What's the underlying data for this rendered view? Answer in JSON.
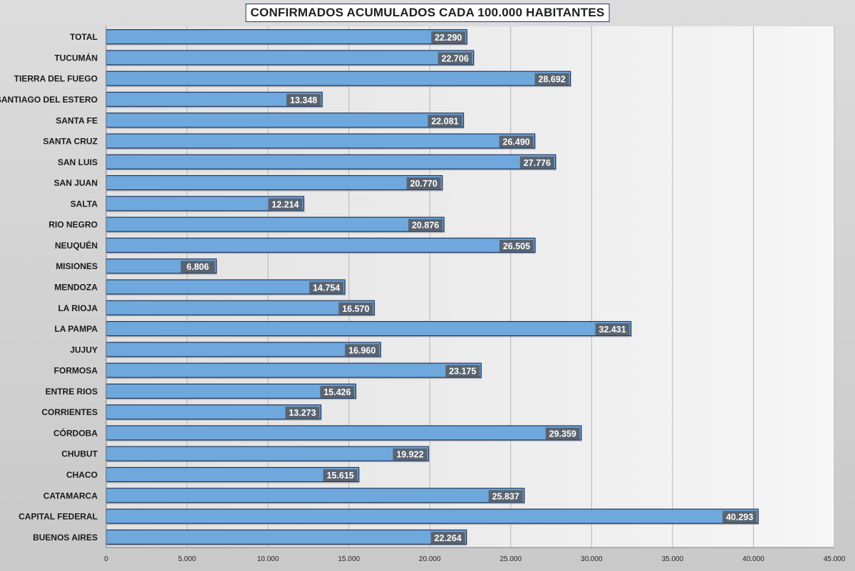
{
  "chart_data": {
    "type": "bar",
    "orientation": "horizontal",
    "title": "CONFIRMADOS ACUMULADOS CADA 100.000 HABITANTES",
    "xlabel": "",
    "ylabel": "",
    "xlim": [
      0,
      45000
    ],
    "x_ticks": [
      0,
      5000,
      10000,
      15000,
      20000,
      25000,
      30000,
      35000,
      40000,
      45000
    ],
    "x_tick_labels": [
      "0",
      "5.000",
      "10.000",
      "15.000",
      "20.000",
      "25.000",
      "30.000",
      "35.000",
      "40.000",
      "45.000"
    ],
    "grid": "vertical",
    "bar_color": "#6fa8dc",
    "bar_border_color": "#1f3864",
    "label_bg_color": "#5a6470",
    "categories": [
      "TOTAL",
      "TUCUMÁN",
      "TIERRA DEL FUEGO",
      "SANTIAGO DEL ESTERO",
      "SANTA FE",
      "SANTA CRUZ",
      "SAN LUIS",
      "SAN JUAN",
      "SALTA",
      "RIO NEGRO",
      "NEUQUÉN",
      "MISIONES",
      "MENDOZA",
      "LA RIOJA",
      "LA PAMPA",
      "JUJUY",
      "FORMOSA",
      "ENTRE RIOS",
      "CORRIENTES",
      "CÓRDOBA",
      "CHUBUT",
      "CHACO",
      "CATAMARCA",
      "CAPITAL FEDERAL",
      "BUENOS AIRES"
    ],
    "values": [
      22290,
      22706,
      28692,
      13348,
      22081,
      26490,
      27776,
      20770,
      12214,
      20876,
      26505,
      6806,
      14754,
      16570,
      32431,
      16960,
      23175,
      15426,
      13273,
      29359,
      19922,
      15615,
      25837,
      40293,
      22264
    ],
    "value_labels": [
      "22.290",
      "22.706",
      "28.692",
      "13.348",
      "22.081",
      "26.490",
      "27.776",
      "20.770",
      "12.214",
      "20.876",
      "26.505",
      "6.806",
      "14.754",
      "16.570",
      "32.431",
      "16.960",
      "23.175",
      "15.426",
      "13.273",
      "29.359",
      "19.922",
      "15.615",
      "25.837",
      "40.293",
      "22.264"
    ]
  }
}
